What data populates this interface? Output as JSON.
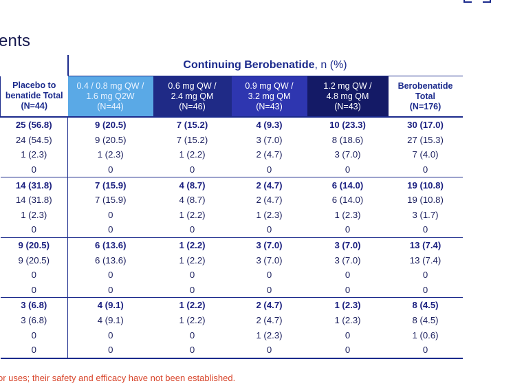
{
  "title": "ents",
  "group_header": {
    "bold": "Continuing Berobenatide",
    "suffix": ", n (%)"
  },
  "columns": [
    {
      "lines": [
        "Placebo to",
        "benatide Total",
        "(N=44)"
      ]
    },
    {
      "lines": [
        "0.4 / 0.8 mg QW /",
        "1.6 mg Q2W",
        "(N=44)"
      ]
    },
    {
      "lines": [
        "0.6 mg QW /",
        "2.4 mg QM",
        "(N=46)"
      ]
    },
    {
      "lines": [
        "0.9 mg QW /",
        "3.2 mg QM",
        "(N=43)"
      ]
    },
    {
      "lines": [
        "1.2 mg QW /",
        "4.8 mg QM",
        "(N=43)"
      ]
    },
    {
      "lines": [
        "Berobenatide",
        "Total",
        "(N=176)"
      ]
    }
  ],
  "rows": [
    [
      "25 (56.8)",
      "9 (20.5)",
      "7 (15.2)",
      "4 (9.3)",
      "10 (23.3)",
      "30 (17.0)"
    ],
    [
      "24 (54.5)",
      "9 (20.5)",
      "7 (15.2)",
      "3 (7.0)",
      "8 (18.6)",
      "27 (15.3)"
    ],
    [
      "1 (2.3)",
      "1 (2.3)",
      "1 (2.2)",
      "2 (4.7)",
      "3 (7.0)",
      "7 (4.0)"
    ],
    [
      "0",
      "0",
      "0",
      "0",
      "0",
      "0"
    ],
    [
      "14 (31.8)",
      "7 (15.9)",
      "4 (8.7)",
      "2 (4.7)",
      "6 (14.0)",
      "19 (10.8)"
    ],
    [
      "14 (31.8)",
      "7 (15.9)",
      "4 (8.7)",
      "2 (4.7)",
      "6 (14.0)",
      "19 (10.8)"
    ],
    [
      "1 (2.3)",
      "0",
      "1 (2.2)",
      "1 (2.3)",
      "1 (2.3)",
      "3 (1.7)"
    ],
    [
      "0",
      "0",
      "0",
      "0",
      "0",
      "0"
    ],
    [
      "9 (20.5)",
      "6 (13.6)",
      "1 (2.2)",
      "3 (7.0)",
      "3 (7.0)",
      "13 (7.4)"
    ],
    [
      "9 (20.5)",
      "6 (13.6)",
      "1 (2.2)",
      "3 (7.0)",
      "3 (7.0)",
      "13 (7.4)"
    ],
    [
      "0",
      "0",
      "0",
      "0",
      "0",
      "0"
    ],
    [
      "0",
      "0",
      "0",
      "0",
      "0",
      "0"
    ],
    [
      "3 (6.8)",
      "4 (9.1)",
      "1 (2.2)",
      "2 (4.7)",
      "1 (2.3)",
      "8 (4.5)"
    ],
    [
      "3 (6.8)",
      "4 (9.1)",
      "1 (2.2)",
      "2 (4.7)",
      "1 (2.3)",
      "8 (4.5)"
    ],
    [
      "0",
      "0",
      "0",
      "1 (2.3)",
      "0",
      "1 (0.6)"
    ],
    [
      "0",
      "0",
      "0",
      "0",
      "0",
      "0"
    ]
  ],
  "footnote": "or uses; their safety and efficacy have not been established."
}
